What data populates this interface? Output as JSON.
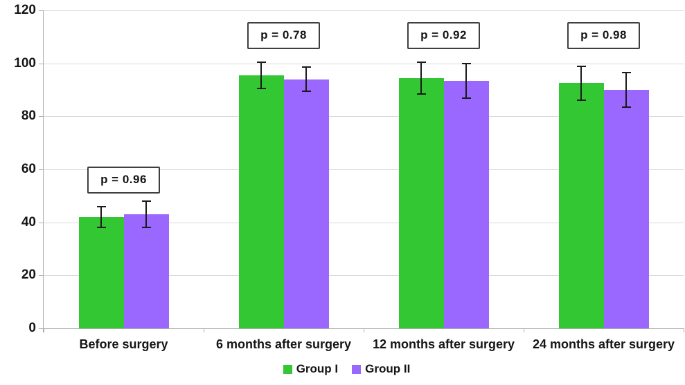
{
  "chart_data": {
    "type": "bar",
    "title": "",
    "xlabel": "",
    "ylabel": "",
    "categories": [
      "Before surgery",
      "6 months after surgery",
      "12 months after surgery",
      "24 months after surgery"
    ],
    "series": [
      {
        "name": "Group I",
        "color": "#33C733",
        "values": [
          42,
          95.5,
          94.5,
          92.5
        ],
        "errors": [
          4,
          5,
          6,
          6.5
        ]
      },
      {
        "name": "Group II",
        "color": "#9A67FF",
        "values": [
          43,
          94,
          93.5,
          90
        ],
        "errors": [
          5,
          4.5,
          6.5,
          6.5
        ]
      }
    ],
    "annotations": [
      {
        "label": "p = 0.96",
        "category_index": 0,
        "y": 56
      },
      {
        "label": "p = 0.78",
        "category_index": 1,
        "y": 110.5
      },
      {
        "label": "p = 0.92",
        "category_index": 2,
        "y": 110.5
      },
      {
        "label": "p = 0.98",
        "category_index": 3,
        "y": 110.5
      }
    ],
    "ylim": [
      0,
      120
    ],
    "yticks": [
      0,
      20,
      40,
      60,
      80,
      100,
      120
    ],
    "grid": true,
    "legend_position": "bottom"
  },
  "colors": {
    "gridline": "#D9D9D9",
    "axis": "#ADADAD",
    "error_bar": "#1A1A1A",
    "annotation_border": "#3F3F3F",
    "text": "#151515",
    "background": "#FFFFFF"
  }
}
